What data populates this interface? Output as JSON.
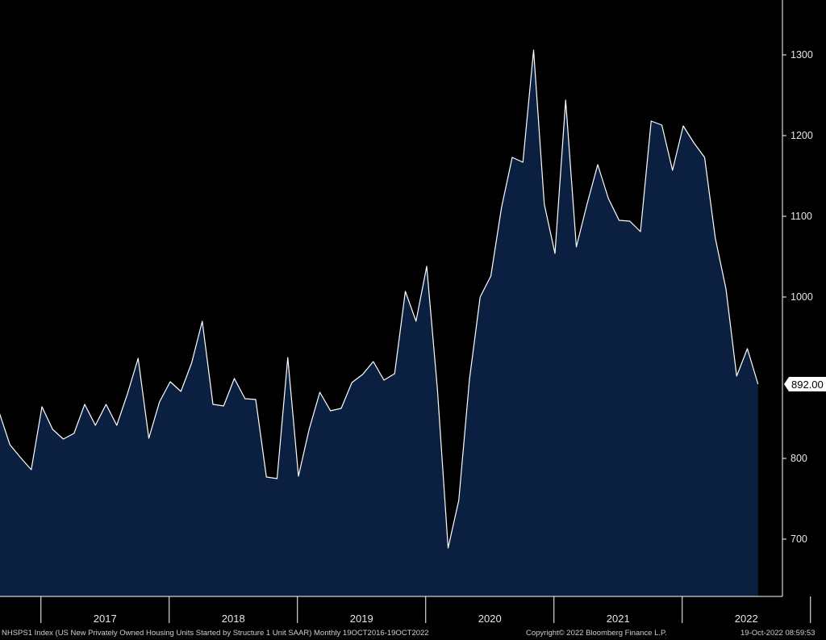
{
  "chart_data": {
    "type": "area",
    "colors": {
      "background": "#000000",
      "fill": "#0b2040",
      "line": "#ffffff",
      "axis": "#ffffff",
      "text": "#e6e6e6",
      "badge_bg": "#ffffff",
      "badge_text": "#000000"
    },
    "series": [
      {
        "values": [
          857,
          817,
          801,
          786,
          864,
          836,
          824,
          831,
          867,
          841,
          867,
          841,
          880,
          924,
          825,
          870,
          895,
          883,
          918,
          970,
          867,
          865,
          899,
          874,
          873,
          777,
          775,
          925,
          778,
          836,
          882,
          859,
          862,
          894,
          904,
          920,
          897,
          905,
          1007,
          970,
          1038,
          886,
          689,
          748,
          898,
          1000,
          1026,
          1111,
          1173,
          1167,
          1306,
          1115,
          1054,
          1244,
          1062,
          1115,
          1164,
          1122,
          1095,
          1094,
          1081,
          1218,
          1213,
          1157,
          1212,
          1191,
          1173,
          1073,
          1010,
          902,
          936,
          892
        ]
      }
    ],
    "yticks": [
      700,
      800,
      1000,
      1100,
      1200,
      1300
    ],
    "ylim": [
      640,
      1365
    ],
    "last_value_label": "892.00",
    "year_labels": [
      "2017",
      "2018",
      "2019",
      "2020",
      "2021",
      "2022"
    ],
    "grid": false
  },
  "footer": {
    "ticker_desc": "NHSPS1 Index (US New Privately Owned Housing Units Started by Structure 1 Unit SAAR)  Monthly 19OCT2016-19OCT2022",
    "copyright": "Copyright© 2022 Bloomberg Finance L.P.",
    "timestamp": "19-Oct-2022 08:59:53"
  }
}
